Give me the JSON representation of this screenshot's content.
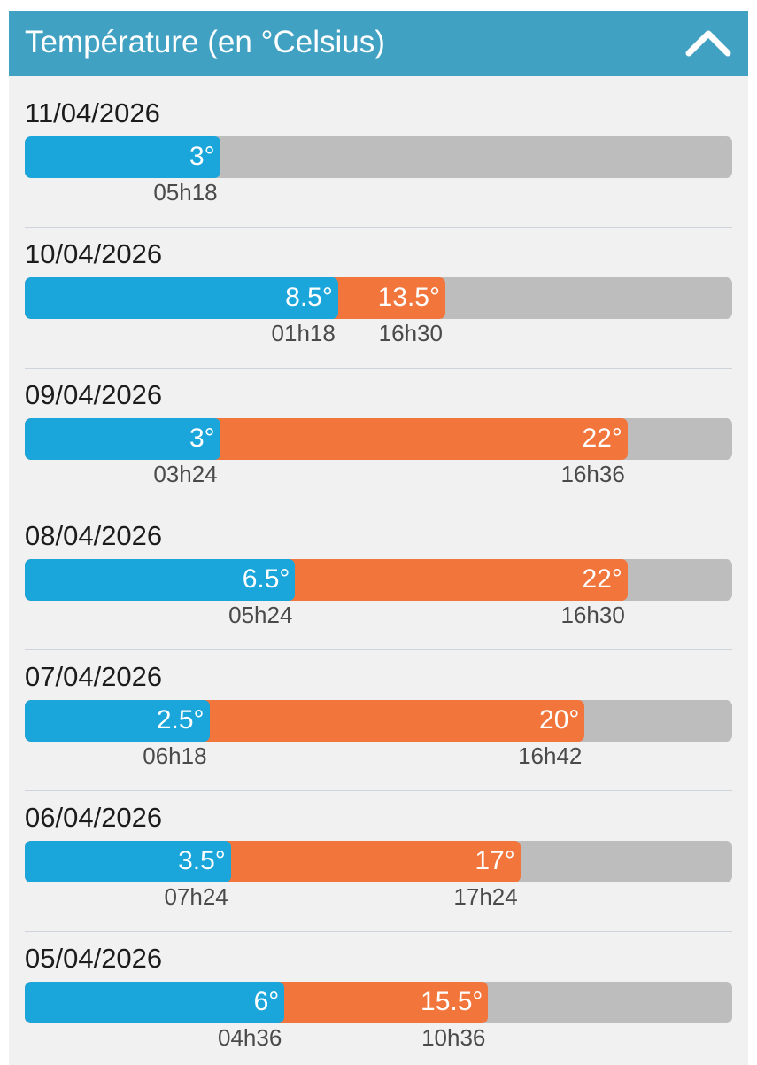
{
  "header": {
    "title": "Température (en °Celsius)",
    "collapse_icon": "chevron-up-icon"
  },
  "colors": {
    "header_bg": "#41a1c2",
    "min_bar": "#1aa6db",
    "max_bar": "#f2763c",
    "track": "#bdbdbd"
  },
  "days": [
    {
      "date": "11/04/2026",
      "min": {
        "label": "3°",
        "value": 3,
        "time": "05h18"
      },
      "max": null
    },
    {
      "date": "10/04/2026",
      "min": {
        "label": "8.5°",
        "value": 8.5,
        "time": "01h18"
      },
      "max": {
        "label": "13.5°",
        "value": 13.5,
        "time": "16h30"
      }
    },
    {
      "date": "09/04/2026",
      "min": {
        "label": "3°",
        "value": 3,
        "time": "03h24"
      },
      "max": {
        "label": "22°",
        "value": 22,
        "time": "16h36"
      }
    },
    {
      "date": "08/04/2026",
      "min": {
        "label": "6.5°",
        "value": 6.5,
        "time": "05h24"
      },
      "max": {
        "label": "22°",
        "value": 22,
        "time": "16h30"
      }
    },
    {
      "date": "07/04/2026",
      "min": {
        "label": "2.5°",
        "value": 2.5,
        "time": "06h18"
      },
      "max": {
        "label": "20°",
        "value": 20,
        "time": "16h42"
      }
    },
    {
      "date": "06/04/2026",
      "min": {
        "label": "3.5°",
        "value": 3.5,
        "time": "07h24"
      },
      "max": {
        "label": "17°",
        "value": 17,
        "time": "17h24"
      }
    },
    {
      "date": "05/04/2026",
      "min": {
        "label": "6°",
        "value": 6,
        "time": "04h36"
      },
      "max": {
        "label": "15.5°",
        "value": 15.5,
        "time": "10h36"
      }
    }
  ]
}
